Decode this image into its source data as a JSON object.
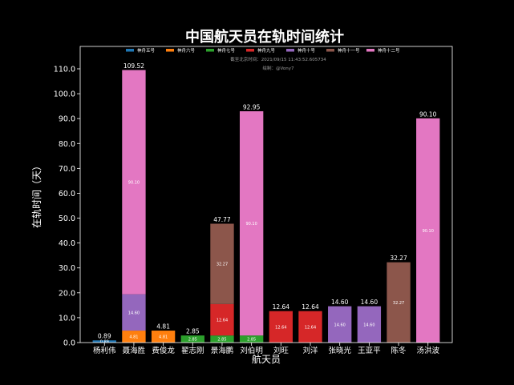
{
  "chart_data": {
    "type": "bar",
    "stacked": true,
    "title": "中国航天员在轨时间统计",
    "xlabel": "航天员",
    "ylabel": "在轨时间（天）",
    "ylim": [
      0,
      119
    ],
    "yticks": [
      0,
      10,
      20,
      30,
      40,
      50,
      60,
      70,
      80,
      90,
      100,
      110
    ],
    "ytick_labels": [
      "0.0",
      "10.0",
      "20.0",
      "30.0",
      "40.0",
      "50.0",
      "60.0",
      "70.0",
      "80.0",
      "90.0",
      "100.0",
      "110.0"
    ],
    "legend_position": "top-center",
    "note_lines": [
      "截至北京时间：2021/09/15 11:43:52.605734",
      "绘制：@Vony7"
    ],
    "categories": [
      "杨利伟",
      "聂海胜",
      "费俊龙",
      "翟志刚",
      "景海鹏",
      "刘伯明",
      "刘旺",
      "刘洋",
      "张晓光",
      "王亚平",
      "陈冬",
      "汤洪波"
    ],
    "series": [
      {
        "name": "神舟五号",
        "color": "#1f77b4",
        "values": [
          0.89,
          0,
          0,
          0,
          0,
          0,
          0,
          0,
          0,
          0,
          0,
          0
        ],
        "labels": [
          "0.89",
          "",
          "",
          "",
          "",
          "",
          "",
          "",
          "",
          "",
          "",
          ""
        ]
      },
      {
        "name": "神舟六号",
        "color": "#ff7f0e",
        "values": [
          0,
          4.81,
          4.81,
          0,
          0,
          0,
          0,
          0,
          0,
          0,
          0,
          0
        ],
        "labels": [
          "",
          "4.81",
          "4.81",
          "",
          "",
          "",
          "",
          "",
          "",
          "",
          "",
          ""
        ]
      },
      {
        "name": "神舟七号",
        "color": "#2ca02c",
        "values": [
          0,
          0,
          0,
          2.85,
          2.85,
          2.85,
          0,
          0,
          0,
          0,
          0,
          0
        ],
        "labels": [
          "",
          "",
          "",
          "2.85",
          "2.85",
          "2.85",
          "",
          "",
          "",
          "",
          "",
          ""
        ]
      },
      {
        "name": "神舟九号",
        "color": "#d62728",
        "values": [
          0,
          0,
          0,
          0,
          12.64,
          0,
          12.64,
          12.64,
          0,
          0,
          0,
          0
        ],
        "labels": [
          "",
          "",
          "",
          "",
          "12.64",
          "",
          "12.64",
          "12.64",
          "",
          "",
          "",
          ""
        ]
      },
      {
        "name": "神舟十号",
        "color": "#9467bd",
        "values": [
          0,
          14.6,
          0,
          0,
          0,
          0,
          0,
          0,
          14.6,
          14.6,
          0,
          0
        ],
        "labels": [
          "",
          "14.60",
          "",
          "",
          "",
          "",
          "",
          "",
          "14.60",
          "14.60",
          "",
          ""
        ]
      },
      {
        "name": "神舟十一号",
        "color": "#8c564b",
        "values": [
          0,
          0,
          0,
          0,
          32.27,
          0,
          0,
          0,
          0,
          0,
          32.27,
          0
        ],
        "labels": [
          "",
          "",
          "",
          "",
          "32.27",
          "",
          "",
          "",
          "",
          "",
          "32.27",
          ""
        ]
      },
      {
        "name": "神舟十二号",
        "color": "#e377c2",
        "values": [
          0,
          90.1,
          0,
          0,
          0,
          90.1,
          0,
          0,
          0,
          0,
          0,
          90.1
        ],
        "labels": [
          "",
          "90.10",
          "",
          "",
          "",
          "90.10",
          "",
          "",
          "",
          "",
          "",
          "90.10"
        ]
      }
    ],
    "totals": [
      "0.89",
      "109.52",
      "4.81",
      "2.85",
      "47.77",
      "92.95",
      "12.64",
      "12.64",
      "14.60",
      "14.60",
      "32.27",
      "90.10"
    ]
  }
}
